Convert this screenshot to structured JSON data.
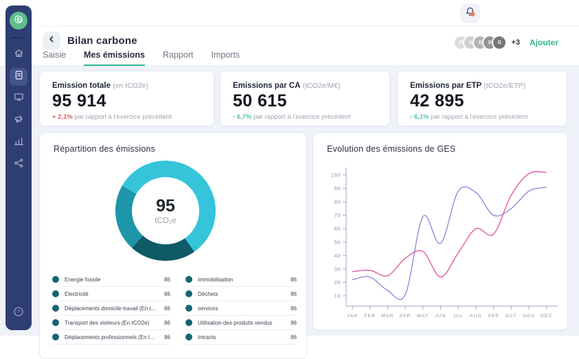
{
  "topbar": {
    "notification_badge": ""
  },
  "header": {
    "title": "Bilan carbone",
    "avatars": [
      "JD",
      "D",
      "D",
      "D",
      "D"
    ],
    "more_count": "+3",
    "add_label": "Ajouter"
  },
  "tabs": [
    {
      "label": "Saisie"
    },
    {
      "label": "Mes émissions"
    },
    {
      "label": "Rapport"
    },
    {
      "label": "Imports"
    }
  ],
  "kpis": [
    {
      "title": "Emission totale",
      "unit": "(en tCO2e)",
      "value": "95 914",
      "delta": "+ 2,1%",
      "delta_text": "par rapport à l'exercice précédent"
    },
    {
      "title": "Emissions par CA",
      "unit": "(tCO2e/M€)",
      "value": "50 615",
      "delta": "- 6,7%",
      "delta_text": "par rapport à l'exercice précédent"
    },
    {
      "title": "Emissions par ETP",
      "unit": "(tCO2e/ETP)",
      "value": "42 895",
      "delta": "- 6,1%",
      "delta_text": "par rapport à l'exercice précédent"
    }
  ],
  "chart_data": [
    {
      "type": "pie",
      "title": "Répartition des émissions",
      "center_value": "95",
      "center_unit": "tCO₂e",
      "rotation_deg": -60,
      "segments": [
        {
          "name": "segment-cyan",
          "color": "#35C4DA",
          "start_deg": 0,
          "end_deg": 205
        },
        {
          "name": "segment-dark-teal",
          "color": "#0E5A66",
          "start_deg": 205,
          "end_deg": 282
        },
        {
          "name": "segment-teal",
          "color": "#1C96A8",
          "start_deg": 282,
          "end_deg": 360
        }
      ],
      "legend_dot_color": "#176471",
      "legend_left": [
        {
          "label": "Energie fossile",
          "value": "86"
        },
        {
          "label": "Electricité",
          "value": "86"
        },
        {
          "label": "Déplacements domicile-travail (En tCO2e)",
          "value": "86"
        },
        {
          "label": "Transport des visiteurs (En tCO2e)",
          "value": "86"
        },
        {
          "label": "Déplacements professionnels (En tCO2e)",
          "value": "86"
        }
      ],
      "legend_right": [
        {
          "label": "Immobilisation",
          "value": "86"
        },
        {
          "label": "Déchets",
          "value": "86"
        },
        {
          "label": "services",
          "value": "86"
        },
        {
          "label": "Utilisation des produits vendus",
          "value": "86"
        },
        {
          "label": "Intrants",
          "value": "86"
        }
      ]
    },
    {
      "type": "line",
      "title": "Evolution des émissions de GES",
      "x": [
        "JAN",
        "FEB",
        "MAR",
        "APR",
        "MAY",
        "JUN",
        "JUL",
        "AUG",
        "SEP",
        "OCT",
        "NOV",
        "DEC"
      ],
      "yticks": [
        10,
        20,
        30,
        40,
        50,
        60,
        70,
        80,
        90,
        100
      ],
      "ylim": [
        0,
        105
      ],
      "grid": false,
      "legend": "none",
      "series": [
        {
          "name": "serie-bleue",
          "color": "#8884D8",
          "values": [
            22,
            24,
            14,
            11,
            69,
            49,
            88,
            87,
            70,
            75,
            88,
            91
          ]
        },
        {
          "name": "serie-rose",
          "color": "#DD4F9B",
          "values": [
            28,
            29,
            25,
            38,
            43,
            24,
            42,
            60,
            56,
            85,
            101,
            102
          ]
        }
      ]
    }
  ]
}
